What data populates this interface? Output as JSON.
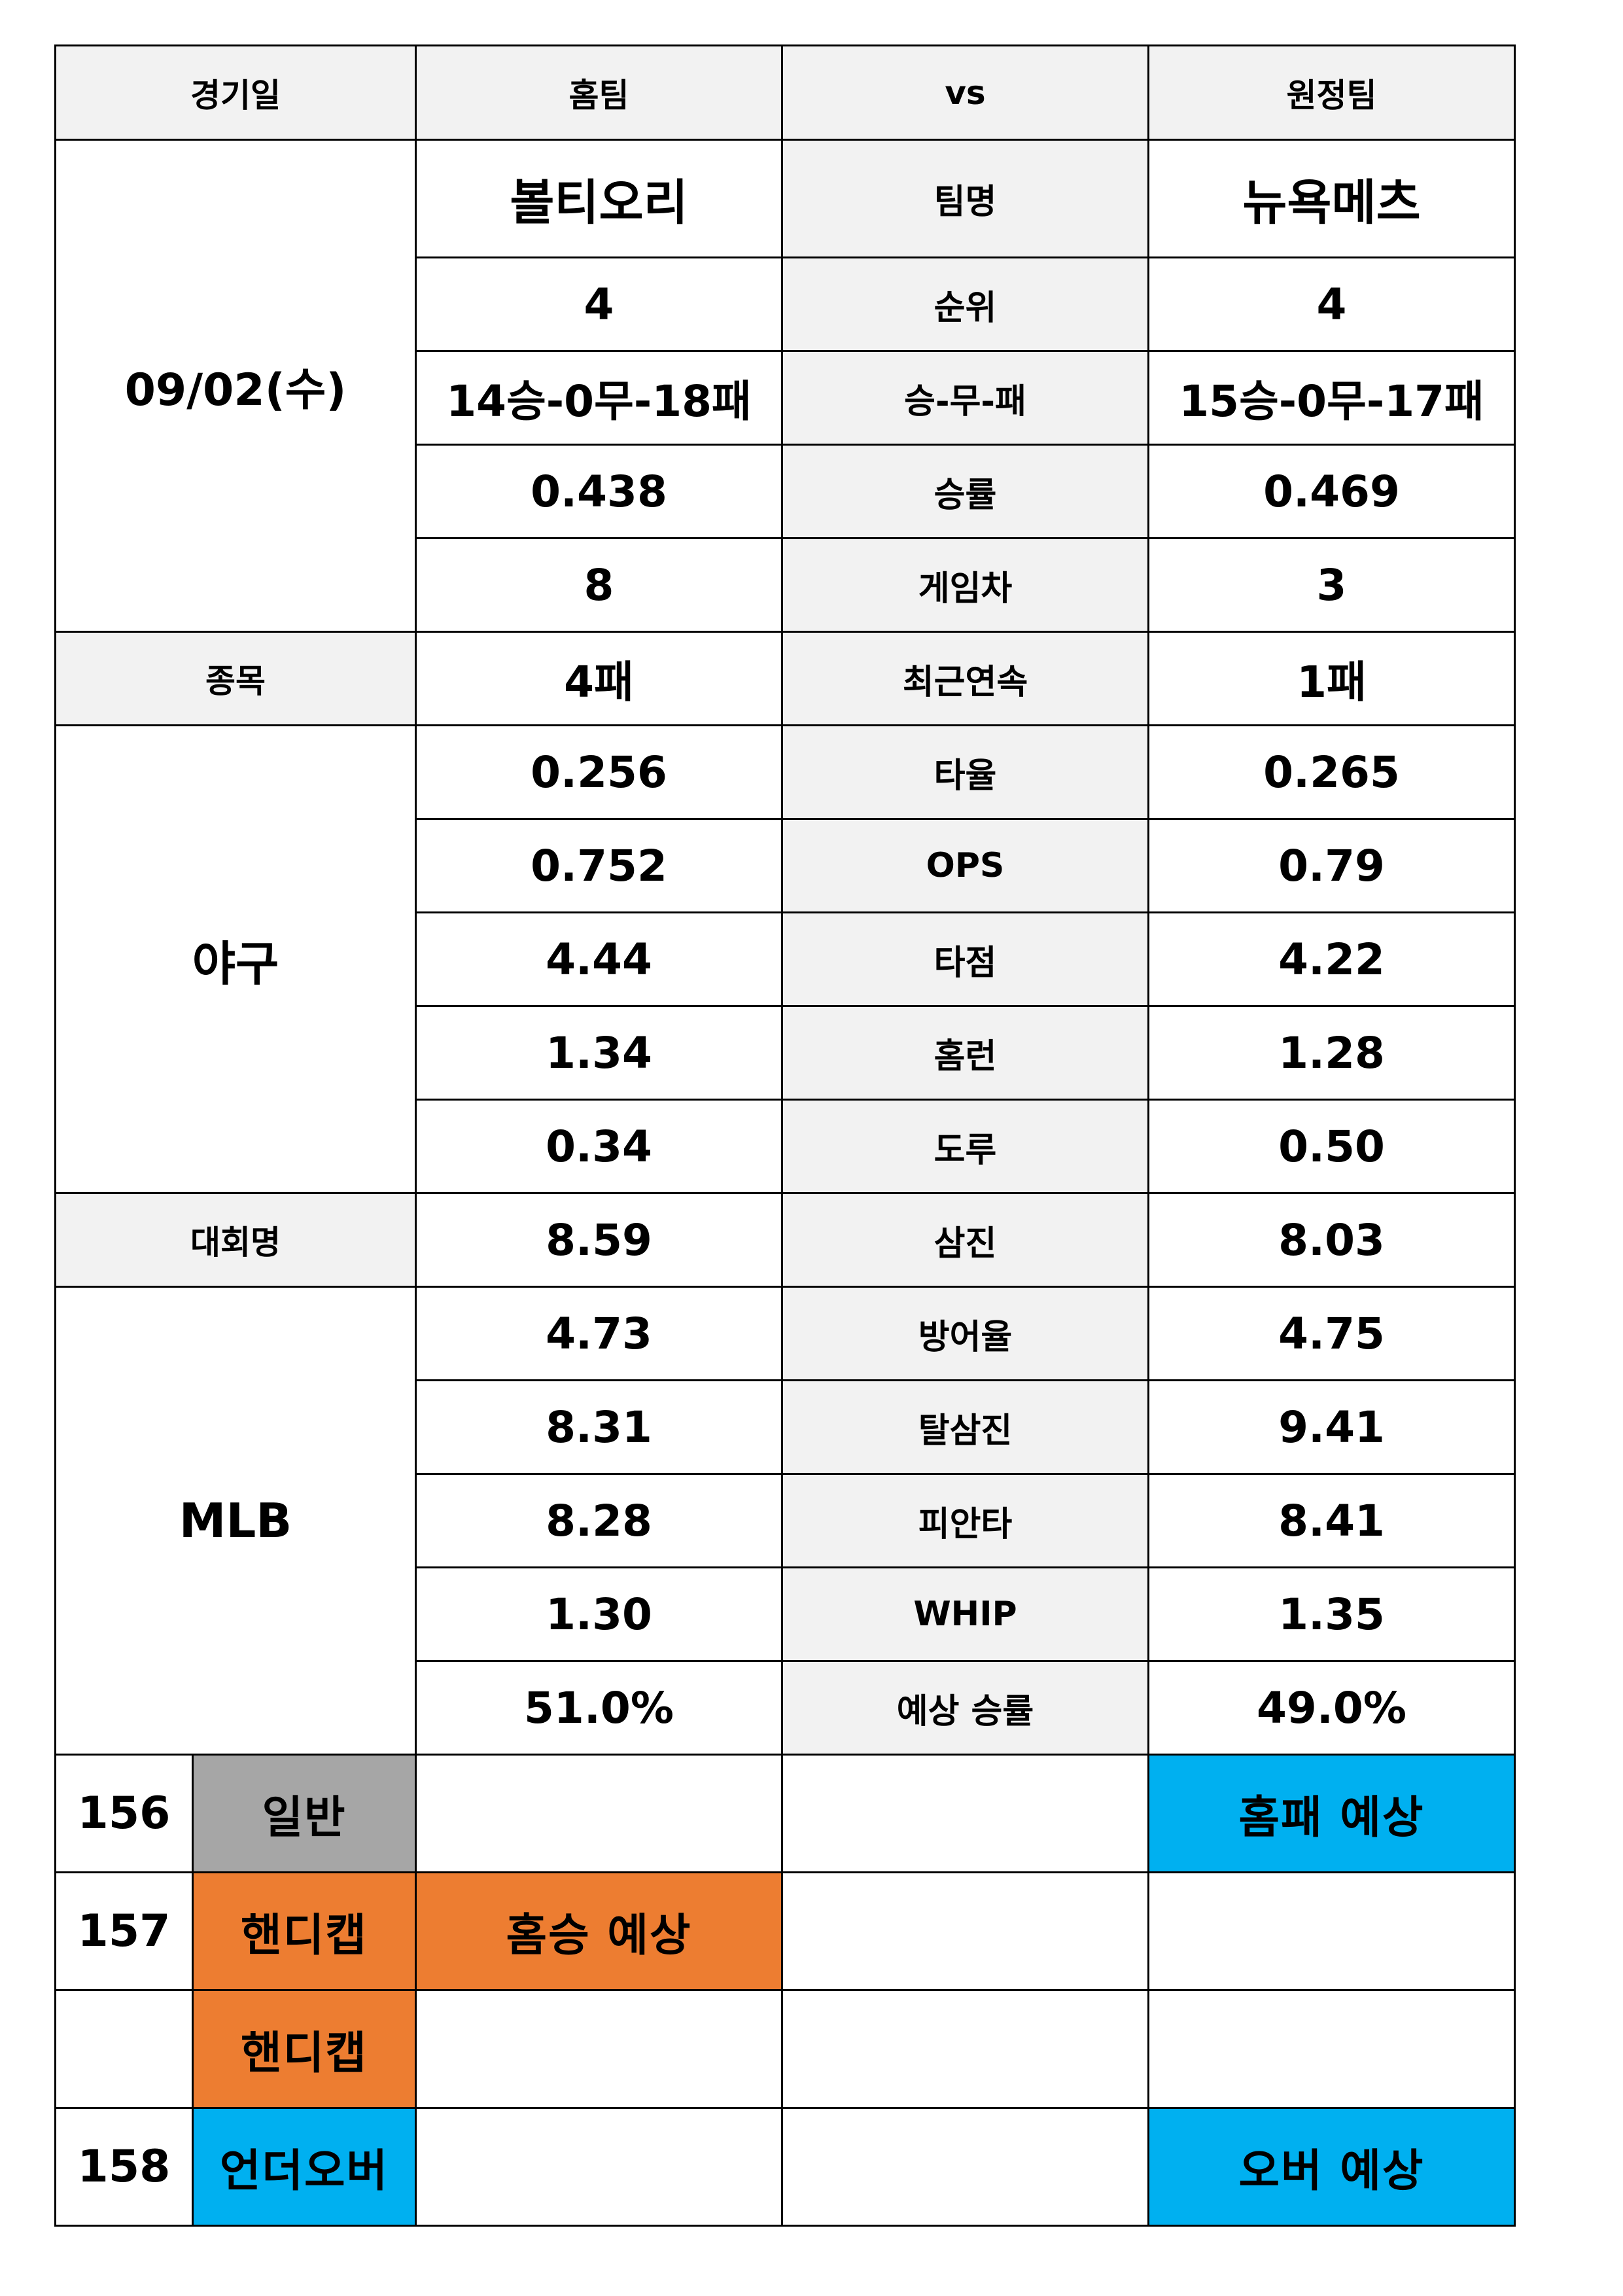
{
  "header": {
    "date_label": "경기일",
    "home_label": "홈팀",
    "vs_label": "vs",
    "away_label": "원정팀"
  },
  "match": {
    "date": "09/02(수)",
    "sport_label": "종목",
    "sport": "야구",
    "league_label": "대회명",
    "league": "MLB"
  },
  "teams": {
    "home": "볼티오리",
    "away": "뉴욕메츠",
    "name_label": "팀명"
  },
  "stats": [
    {
      "label": "순위",
      "home": "4",
      "away": "4"
    },
    {
      "label": "승-무-패",
      "home": "14승-0무-18패",
      "away": "15승-0무-17패"
    },
    {
      "label": "승률",
      "home": "0.438",
      "away": "0.469"
    },
    {
      "label": "게임차",
      "home": "8",
      "away": "3"
    },
    {
      "label": "최근연속",
      "home": "4패",
      "away": "1패"
    },
    {
      "label": "타율",
      "home": "0.256",
      "away": "0.265"
    },
    {
      "label": "OPS",
      "home": "0.752",
      "away": "0.79"
    },
    {
      "label": "타점",
      "home": "4.44",
      "away": "4.22"
    },
    {
      "label": "홈런",
      "home": "1.34",
      "away": "1.28"
    },
    {
      "label": "도루",
      "home": "0.34",
      "away": "0.50"
    },
    {
      "label": "삼진",
      "home": "8.59",
      "away": "8.03"
    },
    {
      "label": "방어율",
      "home": "4.73",
      "away": "4.75"
    },
    {
      "label": "탈삼진",
      "home": "8.31",
      "away": "9.41"
    },
    {
      "label": "피안타",
      "home": "8.28",
      "away": "8.41"
    },
    {
      "label": "WHIP",
      "home": "1.30",
      "away": "1.35"
    },
    {
      "label": "예상 승률",
      "home": "51.0%",
      "away": "49.0%"
    }
  ],
  "predictions": [
    {
      "number": "156",
      "type": "일반",
      "home": "",
      "middle": "",
      "away": "홈패 예상"
    },
    {
      "number": "157",
      "type": "핸디캡",
      "home": "홈승 예상",
      "middle": "",
      "away": ""
    },
    {
      "number": "",
      "type": "핸디캡",
      "home": "",
      "middle": "",
      "away": ""
    },
    {
      "number": "158",
      "type": "언더오버",
      "home": "",
      "middle": "",
      "away": "오버 예상"
    }
  ],
  "colors": {
    "gray_badge": "#a6a6a6",
    "orange": "#ed7d31",
    "blue": "#00b0f0",
    "label_bg": "#f2f2f2"
  }
}
